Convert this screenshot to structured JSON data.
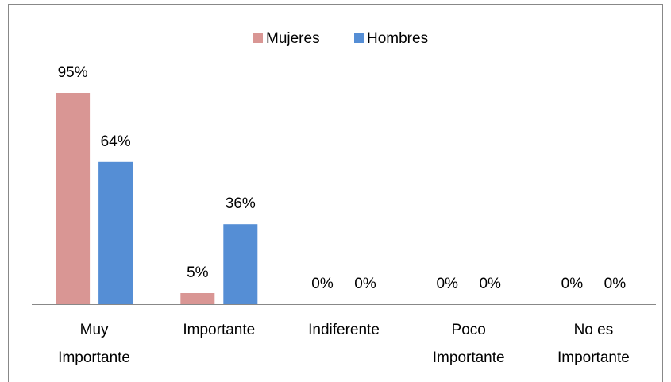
{
  "chart_data": {
    "type": "bar",
    "categories": [
      "Muy Importante",
      "Importante",
      "Indiferente",
      "Poco Importante",
      "No es Importante"
    ],
    "series": [
      {
        "name": "Mujeres",
        "color": "#d99694",
        "values": [
          95,
          5,
          0,
          0,
          0
        ],
        "value_labels": [
          "95%",
          "5%",
          "0%",
          "0%",
          "0%"
        ]
      },
      {
        "name": "Hombres",
        "color": "#558ed5",
        "values": [
          64,
          36,
          0,
          0,
          0
        ],
        "value_labels": [
          "64%",
          "36%",
          "0%",
          "0%",
          "0%"
        ]
      }
    ],
    "legend": "top"
  }
}
